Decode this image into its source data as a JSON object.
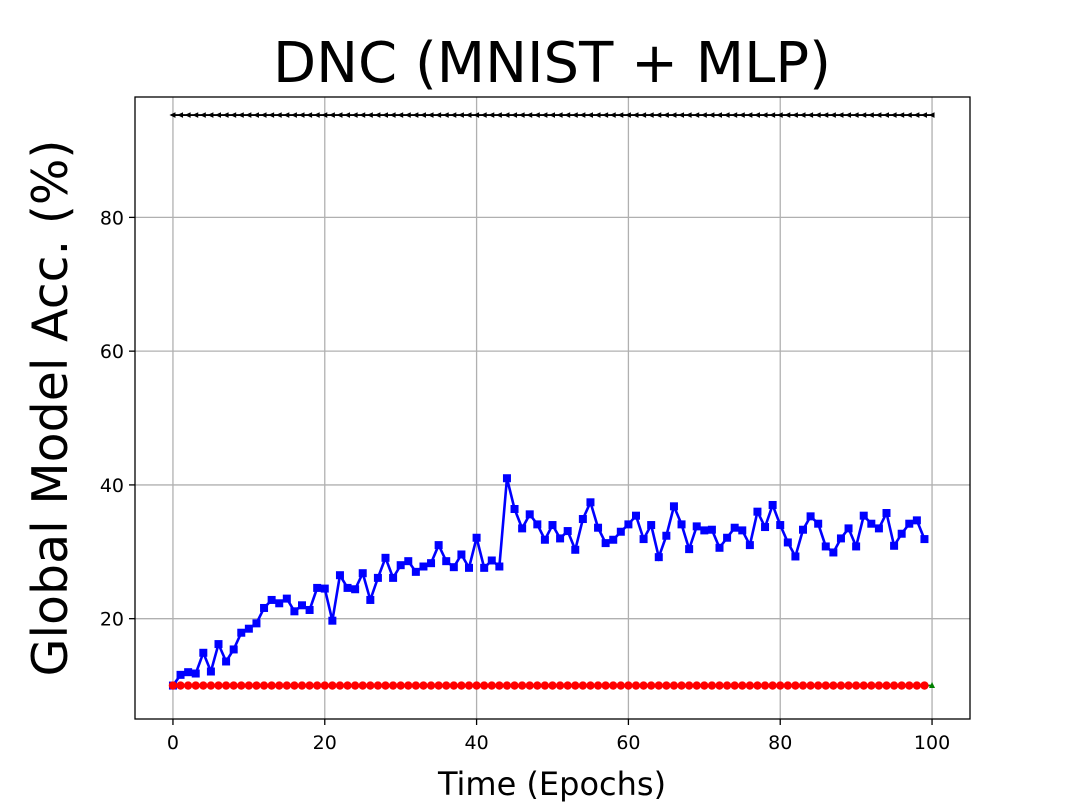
{
  "chart_data": {
    "type": "line",
    "title": "DNC (MNIST + MLP)",
    "xlabel": "Time (Epochs)",
    "ylabel": "Global Model Acc. (%)",
    "xlim": [
      -5,
      105
    ],
    "ylim": [
      5,
      98
    ],
    "xticks": [
      0,
      20,
      40,
      60,
      80,
      100
    ],
    "yticks": [
      20,
      40,
      60,
      80
    ],
    "grid": true,
    "series": [
      {
        "color": "#000000",
        "marker": "triangle-left",
        "x_start": 0,
        "x_step": 1,
        "values": [
          95.3,
          95.3,
          95.3,
          95.3,
          95.3,
          95.3,
          95.3,
          95.3,
          95.3,
          95.3,
          95.3,
          95.3,
          95.3,
          95.3,
          95.3,
          95.3,
          95.3,
          95.3,
          95.3,
          95.3,
          95.3,
          95.3,
          95.3,
          95.3,
          95.3,
          95.3,
          95.3,
          95.3,
          95.3,
          95.3,
          95.3,
          95.3,
          95.3,
          95.3,
          95.3,
          95.3,
          95.3,
          95.3,
          95.3,
          95.3,
          95.3,
          95.3,
          95.3,
          95.3,
          95.3,
          95.3,
          95.3,
          95.3,
          95.3,
          95.3,
          95.3,
          95.3,
          95.3,
          95.3,
          95.3,
          95.3,
          95.3,
          95.3,
          95.3,
          95.3,
          95.3,
          95.3,
          95.3,
          95.3,
          95.3,
          95.3,
          95.3,
          95.3,
          95.3,
          95.3,
          95.3,
          95.3,
          95.3,
          95.3,
          95.3,
          95.3,
          95.3,
          95.3,
          95.3,
          95.3,
          95.3,
          95.3,
          95.3,
          95.3,
          95.3,
          95.3,
          95.3,
          95.3,
          95.3,
          95.3,
          95.3,
          95.3,
          95.3,
          95.3,
          95.3,
          95.3,
          95.3,
          95.3,
          95.3,
          95.3,
          95.3
        ]
      },
      {
        "color": "#0000ff",
        "marker": "square",
        "x_start": 0,
        "x_step": 1,
        "values": [
          10.0,
          11.6,
          12.0,
          11.8,
          14.9,
          12.1,
          16.2,
          13.6,
          15.4,
          17.9,
          18.5,
          19.3,
          21.6,
          22.8,
          22.3,
          23.0,
          21.1,
          22.0,
          21.3,
          24.6,
          24.5,
          19.7,
          26.5,
          24.6,
          24.4,
          26.8,
          22.8,
          26.1,
          29.1,
          26.1,
          28.0,
          28.6,
          27.0,
          27.8,
          28.3,
          31.0,
          28.6,
          27.7,
          29.6,
          27.6,
          32.1,
          27.6,
          28.7,
          27.8,
          41.0,
          36.4,
          33.5,
          35.6,
          34.1,
          31.8,
          34.0,
          32.0,
          33.1,
          30.3,
          34.9,
          37.4,
          33.6,
          31.3,
          31.8,
          33.0,
          34.1,
          35.4,
          31.9,
          34.0,
          29.2,
          32.4,
          36.8,
          34.1,
          30.4,
          33.8,
          33.2,
          33.3,
          30.6,
          32.1,
          33.6,
          33.2,
          31.0,
          36.0,
          33.7,
          37.0,
          34.0,
          31.4,
          29.3,
          33.3,
          35.3,
          34.2,
          30.8,
          29.9,
          32.0,
          33.5,
          30.8,
          35.4,
          34.2,
          33.5,
          35.8,
          30.9,
          32.7,
          34.2,
          34.7,
          31.9
        ]
      },
      {
        "color": "#008000",
        "marker": "triangle-up",
        "x_start": 0,
        "x_step": 1,
        "values": [
          10.0,
          10.0,
          10.0,
          10.0,
          10.0,
          10.0,
          10.0,
          10.0,
          10.0,
          10.0,
          10.0,
          10.0,
          10.0,
          10.0,
          10.0,
          10.0,
          10.0,
          10.0,
          10.0,
          10.0,
          10.0,
          10.0,
          10.0,
          10.0,
          10.0,
          10.0,
          10.0,
          10.0,
          10.0,
          10.0,
          10.0,
          10.0,
          10.0,
          10.0,
          10.0,
          10.0,
          10.0,
          10.0,
          10.0,
          10.0,
          10.0,
          10.0,
          10.0,
          10.0,
          10.0,
          10.0,
          10.0,
          10.0,
          10.0,
          10.0,
          10.0,
          10.0,
          10.0,
          10.0,
          10.0,
          10.0,
          10.0,
          10.0,
          10.0,
          10.0,
          10.0,
          10.0,
          10.0,
          10.0,
          10.0,
          10.0,
          10.0,
          10.0,
          10.0,
          10.0,
          10.0,
          10.0,
          10.0,
          10.0,
          10.0,
          10.0,
          10.0,
          10.0,
          10.0,
          10.0,
          10.0,
          10.0,
          10.0,
          10.0,
          10.0,
          10.0,
          10.0,
          10.0,
          10.0,
          10.0,
          10.0,
          10.0,
          10.0,
          10.0,
          10.0,
          10.0,
          10.0,
          10.0,
          10.0,
          10.0,
          10.0
        ]
      },
      {
        "color": "#ff0000",
        "marker": "circle",
        "x_start": 0,
        "x_step": 1,
        "values": [
          10.0,
          10.0,
          10.0,
          10.0,
          10.0,
          10.0,
          10.0,
          10.0,
          10.0,
          10.0,
          10.0,
          10.0,
          10.0,
          10.0,
          10.0,
          10.0,
          10.0,
          10.0,
          10.0,
          10.0,
          10.0,
          10.0,
          10.0,
          10.0,
          10.0,
          10.0,
          10.0,
          10.0,
          10.0,
          10.0,
          10.0,
          10.0,
          10.0,
          10.0,
          10.0,
          10.0,
          10.0,
          10.0,
          10.0,
          10.0,
          10.0,
          10.0,
          10.0,
          10.0,
          10.0,
          10.0,
          10.0,
          10.0,
          10.0,
          10.0,
          10.0,
          10.0,
          10.0,
          10.0,
          10.0,
          10.0,
          10.0,
          10.0,
          10.0,
          10.0,
          10.0,
          10.0,
          10.0,
          10.0,
          10.0,
          10.0,
          10.0,
          10.0,
          10.0,
          10.0,
          10.0,
          10.0,
          10.0,
          10.0,
          10.0,
          10.0,
          10.0,
          10.0,
          10.0,
          10.0,
          10.0,
          10.0,
          10.0,
          10.0,
          10.0,
          10.0,
          10.0,
          10.0,
          10.0,
          10.0,
          10.0,
          10.0,
          10.0,
          10.0,
          10.0,
          10.0,
          10.0,
          10.0,
          10.0,
          10.0
        ]
      }
    ]
  }
}
